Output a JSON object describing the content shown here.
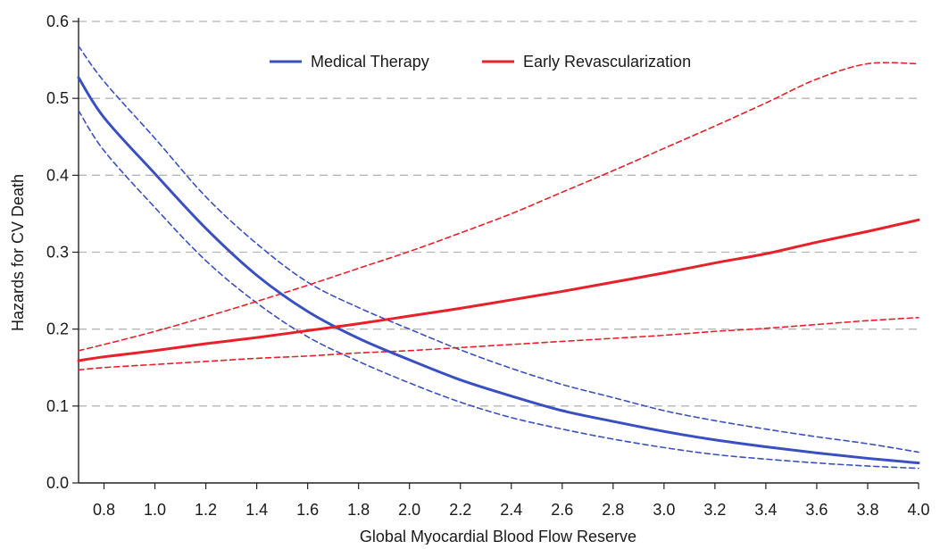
{
  "chart_data": {
    "type": "line",
    "title": "",
    "xlabel": "Global Myocardial Blood Flow Reserve",
    "ylabel": "Hazards for CV Death",
    "xlim": [
      0.7,
      4.0
    ],
    "ylim": [
      0,
      0.6
    ],
    "x_ticks": [
      "0.8",
      "1.0",
      "1.2",
      "1.4",
      "1.6",
      "1.8",
      "2.0",
      "2.2",
      "2.4",
      "2.6",
      "2.8",
      "3.0",
      "3.2",
      "3.4",
      "3.6",
      "3.8",
      "4.0"
    ],
    "y_ticks": [
      "0.0",
      "0.1",
      "0.2",
      "0.3",
      "0.4",
      "0.5",
      "0.6"
    ],
    "grid": "horizontal dashed",
    "legend_position": "top",
    "x": [
      0.7,
      0.8,
      1.0,
      1.2,
      1.4,
      1.6,
      1.8,
      2.0,
      2.2,
      2.4,
      2.6,
      2.8,
      3.0,
      3.2,
      3.4,
      3.6,
      3.8,
      4.0
    ],
    "series": [
      {
        "name": "Medical Therapy",
        "color": "#3a4fc0",
        "style": "solid",
        "values": [
          0.527,
          0.475,
          0.402,
          0.331,
          0.27,
          0.223,
          0.188,
          0.16,
          0.134,
          0.113,
          0.094,
          0.08,
          0.067,
          0.056,
          0.047,
          0.039,
          0.032,
          0.026
        ]
      },
      {
        "name": "Medical Therapy 95% CI upper",
        "color": "#3a4fc0",
        "style": "dashed",
        "values": [
          0.568,
          0.522,
          0.448,
          0.372,
          0.311,
          0.261,
          0.228,
          0.2,
          0.173,
          0.149,
          0.128,
          0.111,
          0.094,
          0.081,
          0.07,
          0.06,
          0.051,
          0.04
        ]
      },
      {
        "name": "Medical Therapy 95% CI lower",
        "color": "#3a4fc0",
        "style": "dashed",
        "values": [
          0.484,
          0.432,
          0.358,
          0.289,
          0.234,
          0.19,
          0.158,
          0.13,
          0.105,
          0.085,
          0.07,
          0.057,
          0.046,
          0.037,
          0.031,
          0.026,
          0.022,
          0.019
        ]
      },
      {
        "name": "Early Revascularization",
        "color": "#e8202a",
        "style": "solid",
        "values": [
          0.159,
          0.164,
          0.172,
          0.181,
          0.189,
          0.198,
          0.207,
          0.217,
          0.227,
          0.238,
          0.249,
          0.261,
          0.273,
          0.286,
          0.298,
          0.313,
          0.327,
          0.342
        ]
      },
      {
        "name": "Early Revascularization 95% CI upper",
        "color": "#e8202a",
        "style": "dashed",
        "values": [
          0.172,
          0.18,
          0.197,
          0.216,
          0.236,
          0.257,
          0.279,
          0.301,
          0.325,
          0.35,
          0.378,
          0.406,
          0.435,
          0.464,
          0.494,
          0.525,
          0.545,
          0.545
        ]
      },
      {
        "name": "Early Revascularization 95% CI lower",
        "color": "#e8202a",
        "style": "dashed",
        "values": [
          0.147,
          0.15,
          0.154,
          0.158,
          0.162,
          0.165,
          0.169,
          0.172,
          0.176,
          0.18,
          0.184,
          0.188,
          0.192,
          0.197,
          0.201,
          0.206,
          0.211,
          0.215
        ]
      }
    ],
    "legend": [
      {
        "label": "Medical Therapy",
        "color": "#3a4fc0"
      },
      {
        "label": "Early Revascularization",
        "color": "#e8202a"
      }
    ]
  }
}
